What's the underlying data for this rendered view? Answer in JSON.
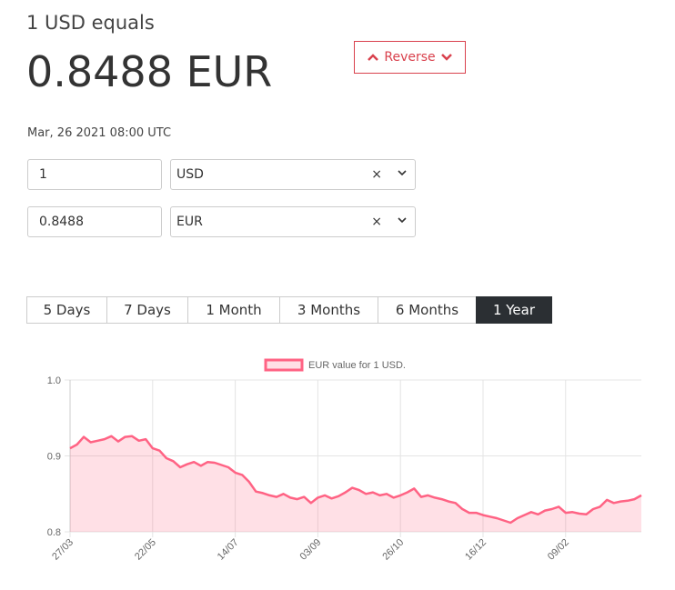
{
  "header": {
    "base": "1 USD equals",
    "rate": "0.8488 EUR",
    "reverse_button": "Reverse",
    "date": "Mar, 26 2021 08:00 UTC"
  },
  "converter": [
    {
      "amount": "1",
      "currency": "USD"
    },
    {
      "amount": "0.8488",
      "currency": "EUR"
    }
  ],
  "tabs": [
    "5 Days",
    "7 Days",
    "1 Month",
    "3 Months",
    "6 Months",
    "1 Year"
  ],
  "active_tab": 5,
  "chart_data": {
    "type": "line",
    "categories": [
      "27/03",
      null,
      null,
      null,
      null,
      null,
      null,
      null,
      null,
      null,
      null,
      null,
      "22/05",
      null,
      null,
      null,
      null,
      null,
      null,
      null,
      null,
      null,
      null,
      null,
      "14/07",
      null,
      null,
      null,
      null,
      null,
      null,
      null,
      null,
      null,
      null,
      null,
      "03/09",
      null,
      null,
      null,
      null,
      null,
      null,
      null,
      null,
      null,
      null,
      null,
      "26/10",
      null,
      null,
      null,
      null,
      null,
      null,
      null,
      null,
      null,
      null,
      null,
      "16/12",
      null,
      null,
      null,
      null,
      null,
      null,
      null,
      null,
      null,
      null,
      null,
      "09/02",
      null,
      null,
      null,
      null,
      null,
      null,
      null,
      null,
      null,
      null,
      null
    ],
    "series": [
      {
        "name": "EUR value for 1 USD.",
        "color": "#ff6384",
        "fill": "rgba(255,99,132,0.2)",
        "values": [
          0.91,
          0.915,
          0.925,
          0.918,
          0.92,
          0.922,
          0.926,
          0.919,
          0.925,
          0.926,
          0.92,
          0.922,
          0.91,
          0.907,
          0.897,
          0.893,
          0.885,
          0.889,
          0.892,
          0.887,
          0.892,
          0.891,
          0.888,
          0.885,
          0.878,
          0.875,
          0.866,
          0.853,
          0.851,
          0.848,
          0.846,
          0.85,
          0.845,
          0.843,
          0.846,
          0.838,
          0.845,
          0.848,
          0.844,
          0.847,
          0.852,
          0.858,
          0.855,
          0.85,
          0.852,
          0.848,
          0.85,
          0.845,
          0.848,
          0.852,
          0.857,
          0.846,
          0.848,
          0.845,
          0.843,
          0.84,
          0.838,
          0.83,
          0.825,
          0.825,
          0.822,
          0.82,
          0.818,
          0.815,
          0.812,
          0.818,
          0.822,
          0.826,
          0.823,
          0.828,
          0.83,
          0.833,
          0.825,
          0.826,
          0.824,
          0.823,
          0.83,
          0.833,
          0.842,
          0.838,
          0.84,
          0.841,
          0.843,
          0.848
        ]
      }
    ],
    "ylim": [
      0.8,
      1
    ],
    "yticks": [
      0.8,
      0.9,
      {
        "value": 1,
        "label": "1.0"
      }
    ],
    "grid": true
  }
}
